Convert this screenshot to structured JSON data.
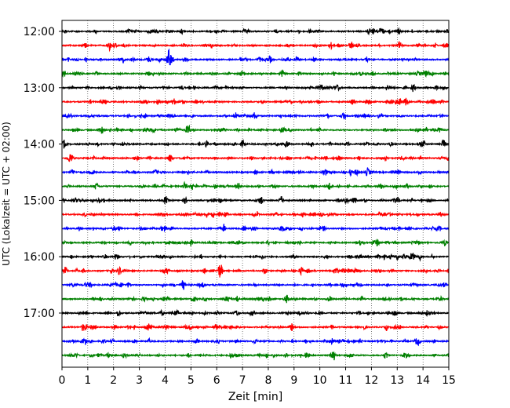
{
  "chart_data": {
    "type": "line",
    "title": "",
    "xlabel": "Zeit  [min]",
    "ylabel": "UTC (Lokalzeit = UTC + 02:00)",
    "xlim": [
      0,
      15
    ],
    "x_ticks": [
      0,
      1,
      2,
      3,
      4,
      5,
      6,
      7,
      8,
      9,
      10,
      11,
      12,
      13,
      14,
      15
    ],
    "y_ticks": [
      "12:00",
      "13:00",
      "14:00",
      "15:00",
      "16:00",
      "17:00"
    ],
    "grid": "vertical dotted",
    "colors": [
      "#000000",
      "#ff0000",
      "#0000ff",
      "#008000"
    ],
    "traces_start": "12:00",
    "trace_interval_min": 15,
    "trace_count": 24,
    "events": [
      {
        "trace": 2,
        "x": 4.15,
        "amp": 1.0
      },
      {
        "trace": 7,
        "x": 1.5,
        "amp": 0.3
      },
      {
        "trace": 9,
        "x": 4.2,
        "amp": 0.35
      },
      {
        "trace": 12,
        "x": 8.5,
        "amp": 0.35
      },
      {
        "trace": 12,
        "x": 11.0,
        "amp": 0.3
      },
      {
        "trace": 17,
        "x": 6.15,
        "amp": 0.6
      },
      {
        "trace": 17,
        "x": 9.3,
        "amp": 0.3
      },
      {
        "trace": 21,
        "x": 8.9,
        "amp": 0.35
      },
      {
        "trace": 23,
        "x": 10.5,
        "amp": 0.7
      }
    ]
  }
}
